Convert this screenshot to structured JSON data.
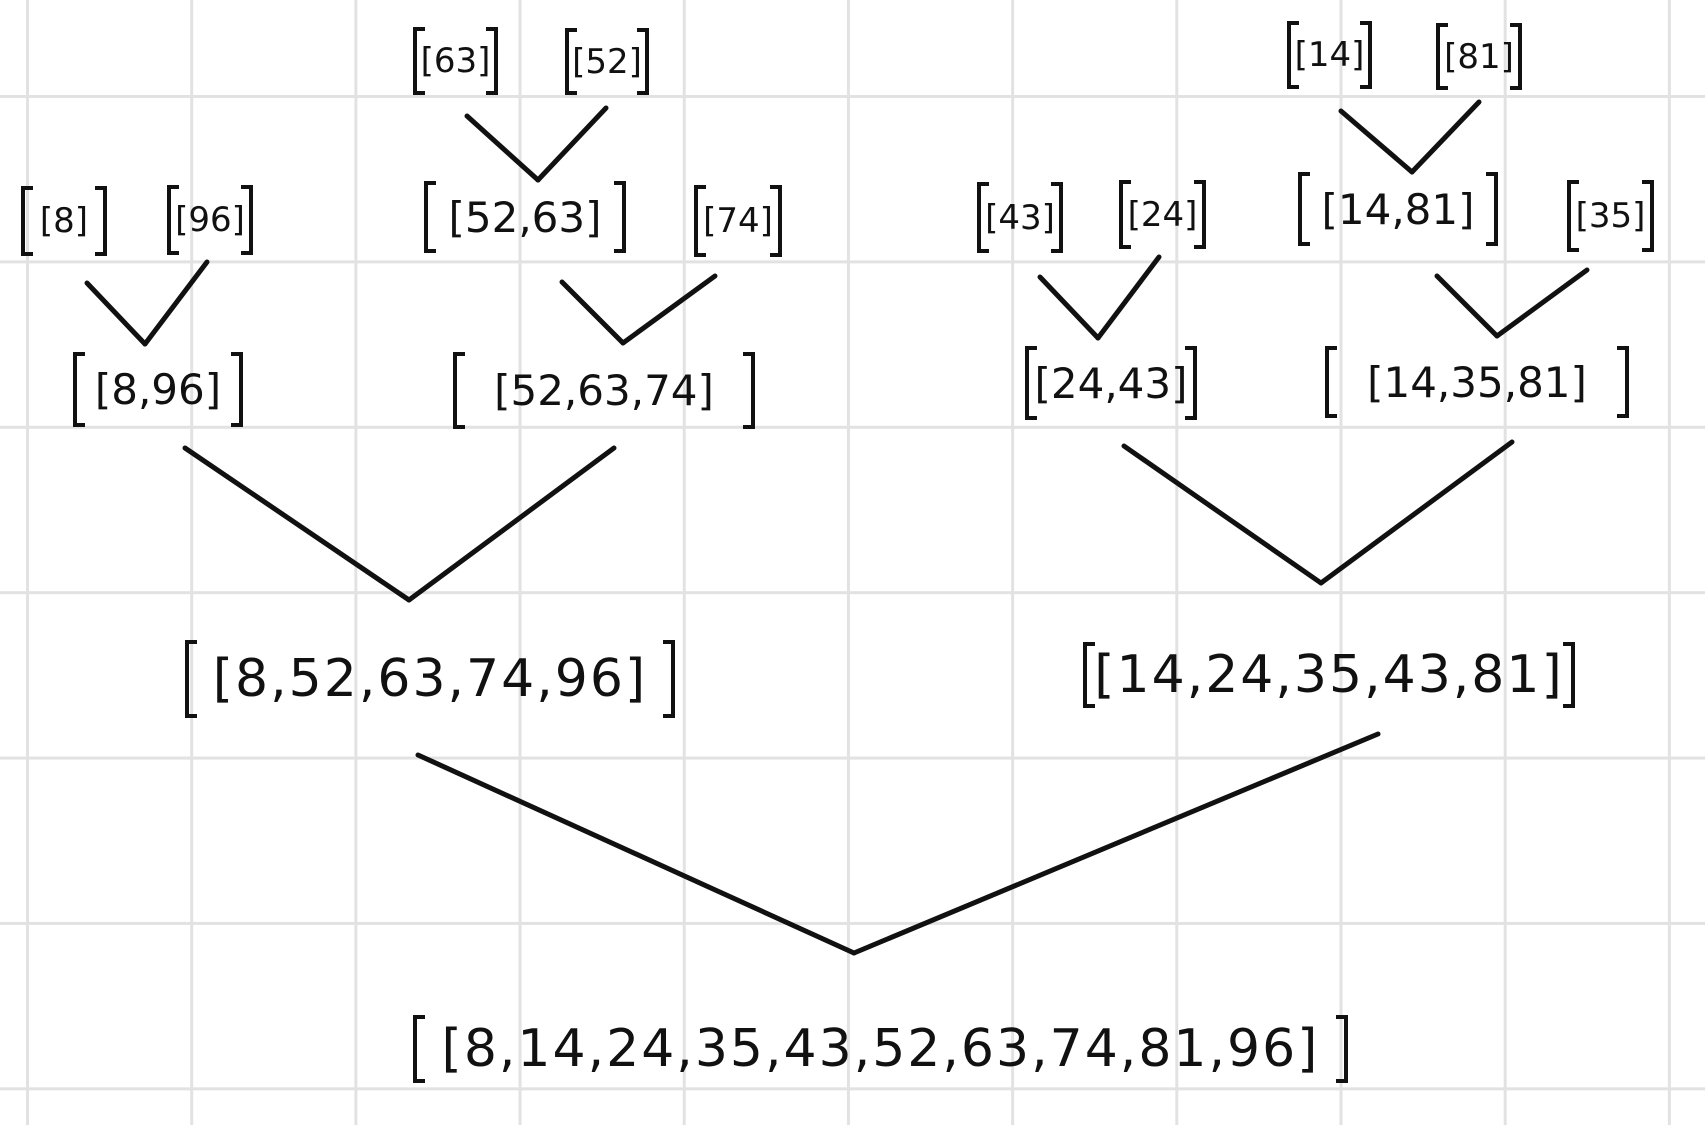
{
  "diagram": {
    "left_half": {
      "leaves": {
        "a": "[8]",
        "b": "[96]",
        "c": "[63]",
        "d": "[52]",
        "e": "[74]"
      },
      "merged_52_63": "[52,63]",
      "merged_8_96": "[8,96]",
      "merged_52_63_74": "[52,63,74]",
      "result": "[8,52,63,74,96]"
    },
    "right_half": {
      "leaves": {
        "a": "[43]",
        "b": "[24]",
        "c": "[14]",
        "d": "[81]",
        "e": "[35]"
      },
      "merged_14_81": "[14,81]",
      "merged_24_43": "[24,43]",
      "merged_14_35_81": "[14,35,81]",
      "result": "[14,24,35,43,81]"
    },
    "final_result": "[8,14,24,35,43,52,63,74,81,96]",
    "colors": {
      "ink": "#111111",
      "grid": "#e2e2e2",
      "paper": "#ffffff"
    }
  }
}
